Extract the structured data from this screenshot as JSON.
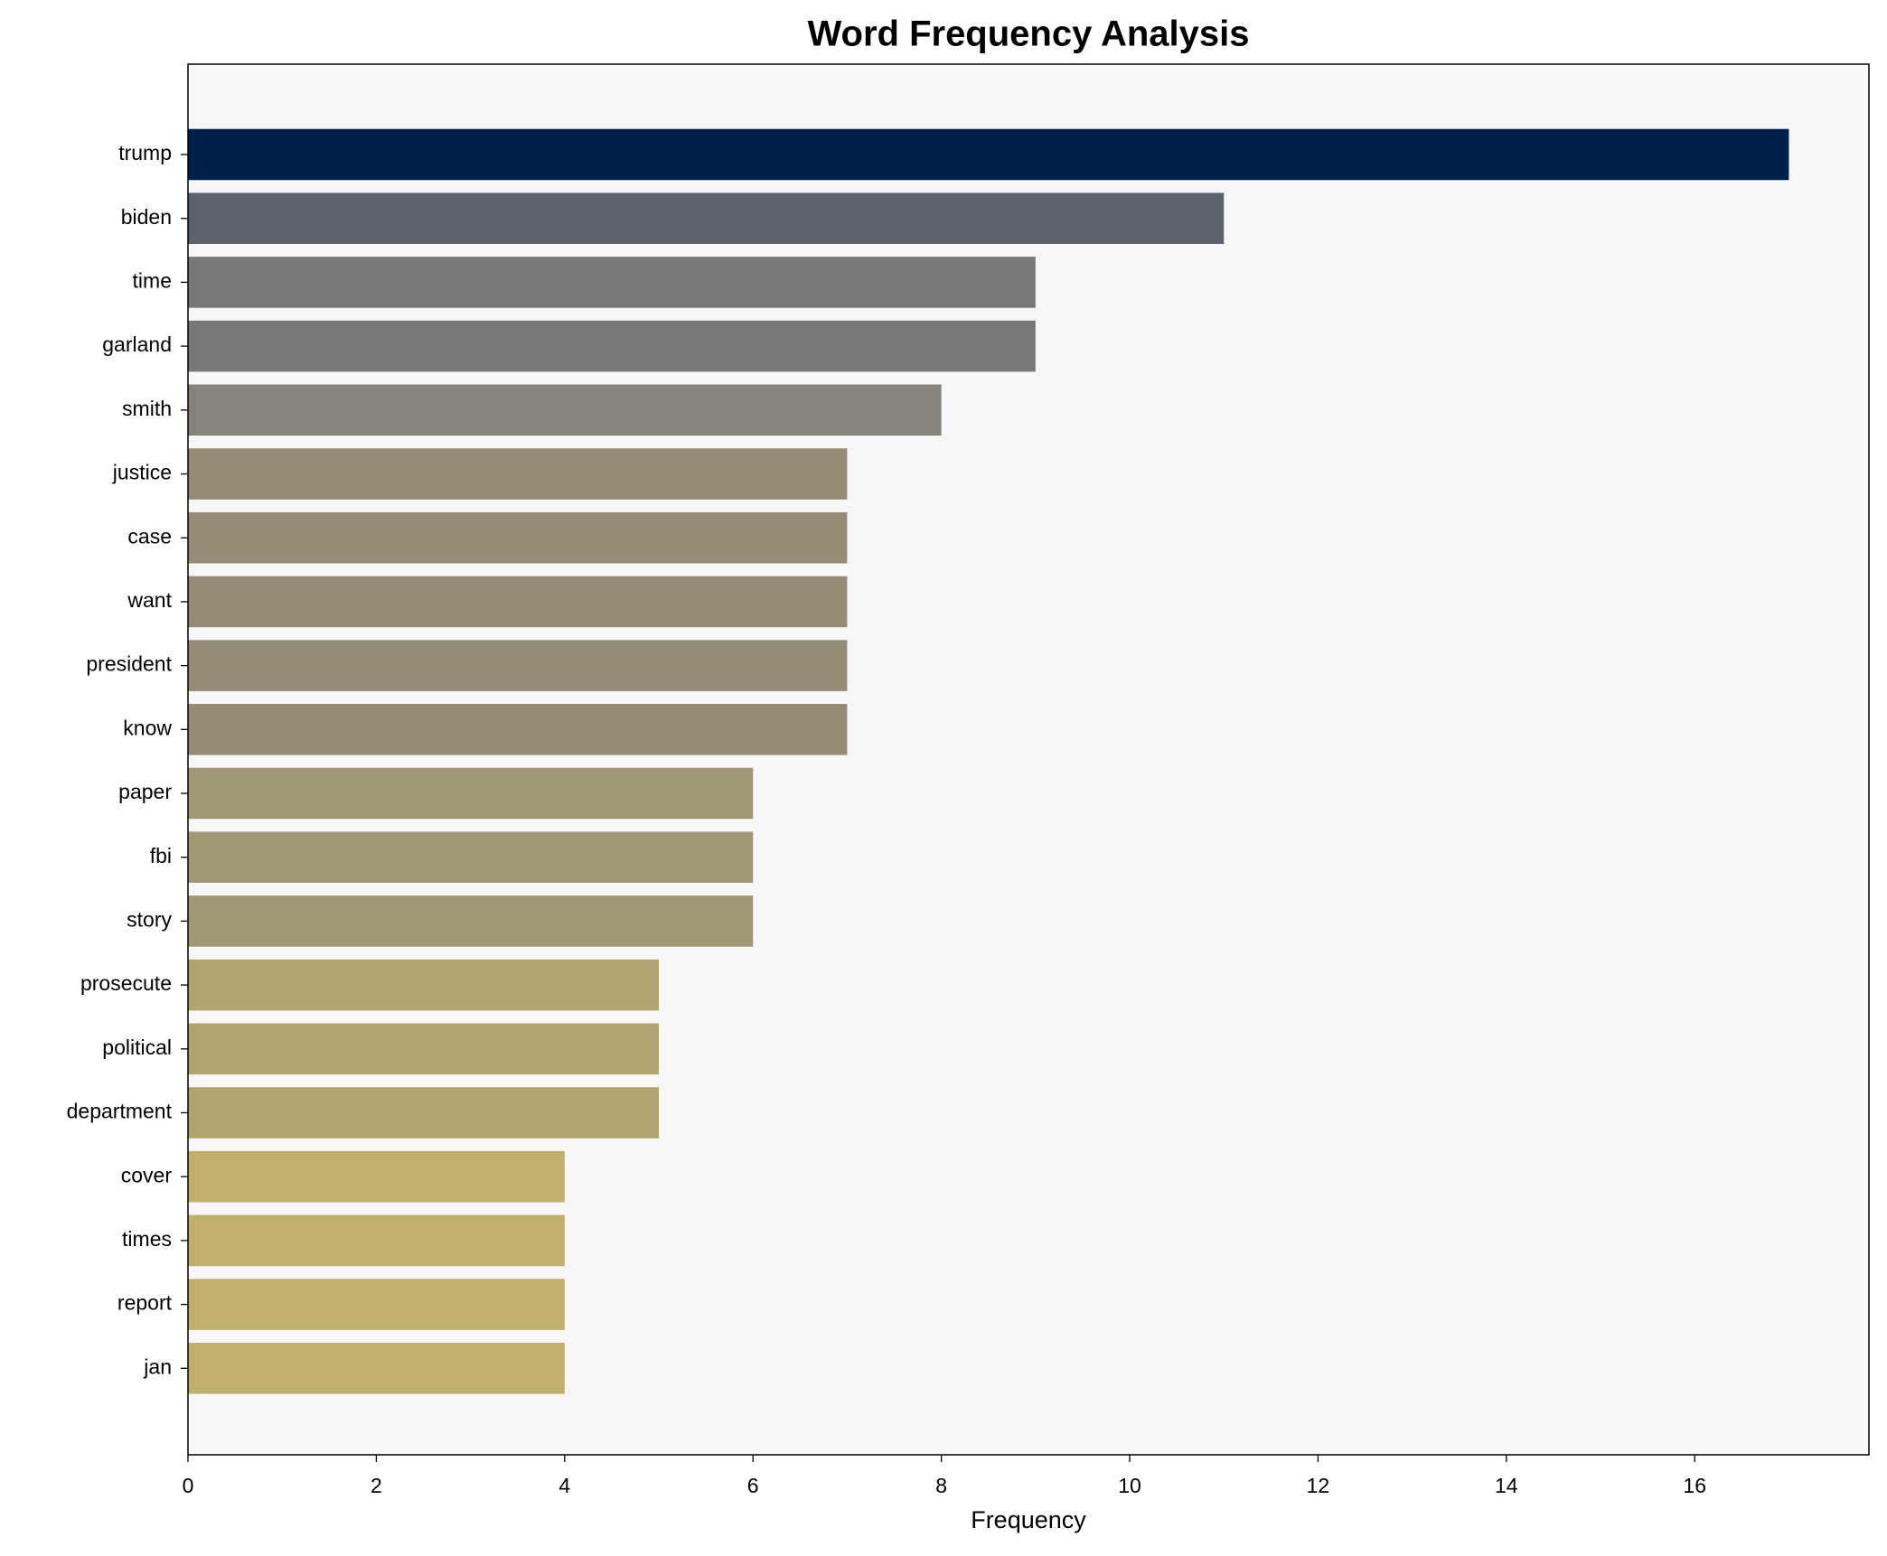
{
  "chart_data": {
    "type": "barh",
    "title": "Word Frequency Analysis",
    "xlabel": "Frequency",
    "categories": [
      "trump",
      "biden",
      "time",
      "garland",
      "smith",
      "justice",
      "case",
      "want",
      "president",
      "know",
      "paper",
      "fbi",
      "story",
      "prosecute",
      "political",
      "department",
      "cover",
      "times",
      "report",
      "jan"
    ],
    "values": [
      17,
      11,
      9,
      9,
      8,
      7,
      7,
      7,
      7,
      7,
      6,
      6,
      6,
      5,
      5,
      5,
      4,
      4,
      4,
      4
    ],
    "colors": [
      "#002147",
      "#5c626e",
      "#787878",
      "#787878",
      "#86837a",
      "#948c77",
      "#948c77",
      "#948c77",
      "#948c77",
      "#948c77",
      "#a09874",
      "#a09874",
      "#a09874",
      "#b0a570",
      "#b0a570",
      "#b0a570",
      "#c0b06b",
      "#c0b06b",
      "#c0b06b",
      "#c0b06b"
    ],
    "xlim": [
      0,
      17.85
    ],
    "xticks": [
      0,
      2,
      4,
      6,
      8,
      10,
      12,
      14,
      16
    ],
    "grid": false
  }
}
